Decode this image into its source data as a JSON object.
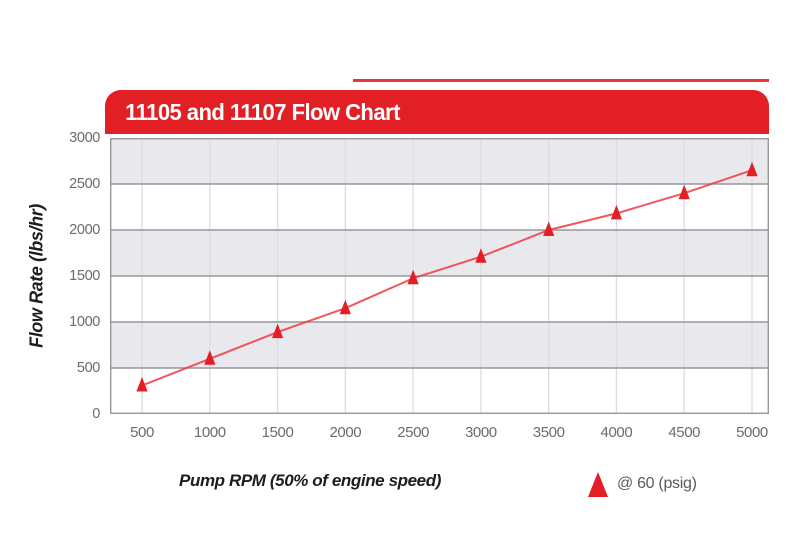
{
  "page": {
    "background": "#ffffff"
  },
  "decor": {
    "top_rule_color": "#e8353b"
  },
  "header": {
    "bg_color": "#e31f26",
    "text_color": "#ffffff"
  },
  "colors": {
    "band_gray": "#e9e9ed",
    "band_white": "#ffffff",
    "h_gridline": "#97979b",
    "v_gridline": "#dcdce2",
    "plot_border": "#97979b",
    "series_line": "#ee3a41",
    "series_marker": "#e31f26",
    "tick_text": "#6b6c6e",
    "axis_title_text": "#1d1d1f"
  },
  "chart_data": {
    "type": "line",
    "title": "11105 and 11107 Flow Chart",
    "xlabel": "Pump RPM (50% of engine speed)",
    "ylabel": "Flow Rate (lbs/hr)",
    "x": [
      500,
      1000,
      1500,
      2000,
      2500,
      3000,
      3500,
      4000,
      4500,
      5000
    ],
    "x_tick_labels": [
      "500",
      "1000",
      "1500",
      "2000",
      "2500",
      "3000",
      "3500",
      "4000",
      "4500",
      "5000"
    ],
    "y_tick_labels": [
      "3000",
      "2500",
      "2000",
      "1500",
      "1000",
      "500",
      "0"
    ],
    "ylim": [
      0,
      3000
    ],
    "y_tick_step": 500,
    "grid": {
      "horizontal": true,
      "vertical": true,
      "banded_rows": true,
      "band_colors": [
        "#e9e9ed",
        "#ffffff"
      ]
    },
    "legend_position": "bottom-right",
    "series": [
      {
        "name": "@ 60 (psig)",
        "marker": "triangle",
        "marker_color": "#e31f26",
        "line_color": "#ee3a41",
        "values": [
          310,
          600,
          890,
          1150,
          1475,
          1710,
          2000,
          2180,
          2400,
          2650
        ]
      }
    ]
  }
}
